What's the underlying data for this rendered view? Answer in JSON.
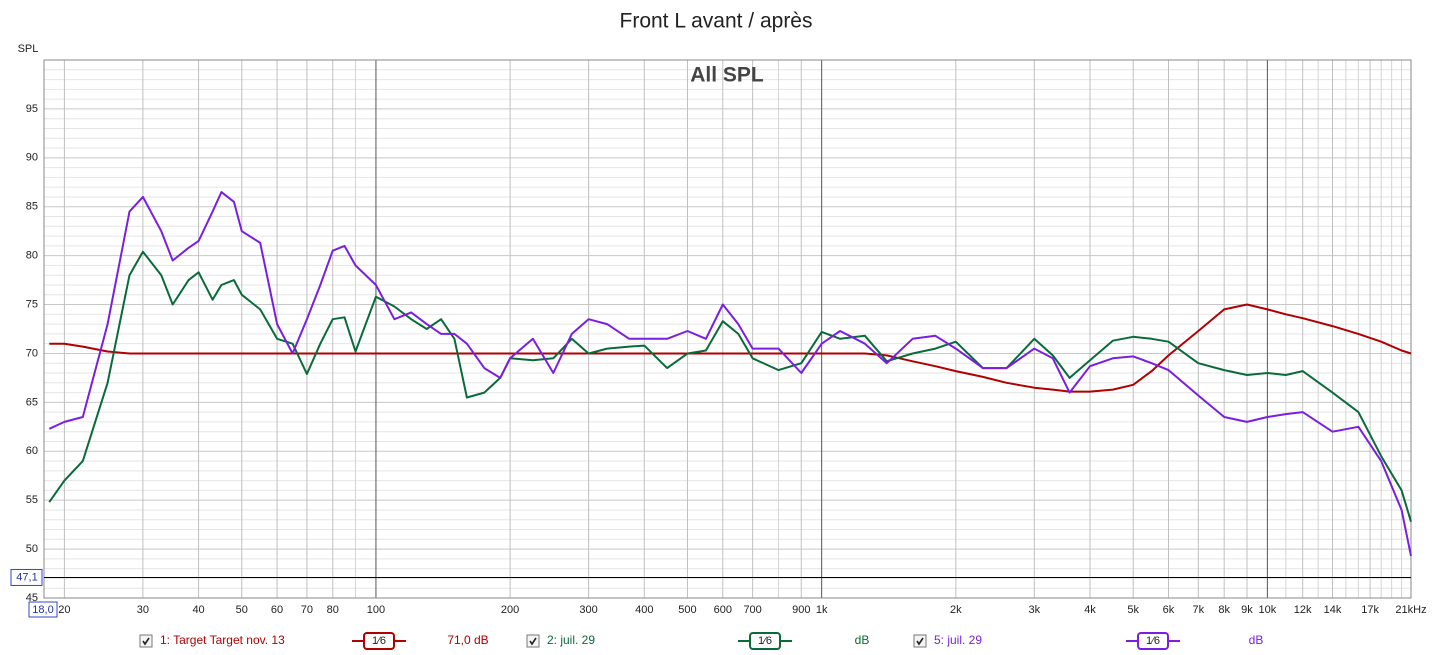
{
  "chart_data": {
    "type": "line",
    "title": "Front L avant / après",
    "subtitle": "All SPL",
    "y_label": "SPL",
    "log_x": true,
    "grid": true,
    "xlim": [
      18,
      21000
    ],
    "ylim": [
      45,
      100
    ],
    "yticks": [
      45,
      50,
      55,
      60,
      65,
      70,
      75,
      80,
      85,
      90,
      95
    ],
    "ygrid_minor": [
      46,
      47,
      48,
      49,
      51,
      52,
      53,
      54,
      56,
      57,
      58,
      59,
      61,
      62,
      63,
      64,
      66,
      67,
      68,
      69,
      71,
      72,
      73,
      74,
      76,
      77,
      78,
      79,
      81,
      82,
      83,
      84,
      86,
      87,
      88,
      89,
      91,
      92,
      93,
      94,
      96,
      97,
      98,
      99
    ],
    "xticks": [
      20,
      30,
      40,
      50,
      60,
      70,
      80,
      100,
      200,
      300,
      400,
      500,
      600,
      700,
      900,
      {
        "value": 1000,
        "label": "1k"
      },
      {
        "value": 2000,
        "label": "2k"
      },
      {
        "value": 3000,
        "label": "3k"
      },
      {
        "value": 4000,
        "label": "4k"
      },
      {
        "value": 5000,
        "label": "5k"
      },
      {
        "value": 6000,
        "label": "6k"
      },
      {
        "value": 7000,
        "label": "7k"
      },
      {
        "value": 8000,
        "label": "8k"
      },
      {
        "value": 9000,
        "label": "9k"
      },
      {
        "value": 10000,
        "label": "10k"
      },
      {
        "value": 12000,
        "label": "12k"
      },
      {
        "value": 14000,
        "label": "14k"
      },
      {
        "value": 17000,
        "label": "17k"
      },
      {
        "value": 21000,
        "label": "21kHz"
      }
    ],
    "xgrid_minor": [
      90,
      800,
      11000,
      13000,
      15000,
      16000,
      18000,
      19000,
      20000
    ],
    "cursor": {
      "x": {
        "value": 18,
        "label": "18,0"
      },
      "y": {
        "value": 47.1,
        "label": "47,1"
      }
    },
    "x": [
      18.5,
      20,
      22,
      25,
      28,
      30,
      33,
      35,
      38,
      40,
      43,
      45,
      48,
      50,
      55,
      60,
      65,
      70,
      75,
      80,
      85,
      90,
      100,
      110,
      120,
      130,
      140,
      150,
      160,
      175,
      190,
      200,
      225,
      250,
      275,
      300,
      330,
      370,
      400,
      450,
      500,
      550,
      600,
      650,
      700,
      800,
      900,
      1000,
      1100,
      1250,
      1400,
      1600,
      1800,
      2000,
      2300,
      2600,
      3000,
      3300,
      3600,
      4000,
      4500,
      5000,
      5500,
      6000,
      7000,
      8000,
      9000,
      10000,
      11000,
      12000,
      14000,
      16000,
      18000,
      20000,
      21000
    ],
    "series": [
      {
        "name": "1: Target Target nov. 13",
        "color": "#b00000",
        "smoothing": "1⁄6",
        "level": "71,0 dB",
        "values": [
          71,
          71,
          70.7,
          70.2,
          70,
          70,
          70,
          70,
          70,
          70,
          70,
          70,
          70,
          70,
          70,
          70,
          70,
          70,
          70,
          70,
          70,
          70,
          70,
          70,
          70,
          70,
          70,
          70,
          70,
          70,
          70,
          70,
          70,
          70,
          70,
          70,
          70,
          70,
          70,
          70,
          70,
          70,
          70,
          70,
          70,
          70,
          70,
          70,
          70,
          70,
          69.8,
          69.2,
          68.7,
          68.2,
          67.6,
          67,
          66.5,
          66.3,
          66.1,
          66.1,
          66.3,
          66.8,
          68.2,
          69.8,
          72.3,
          74.5,
          75,
          74.5,
          74,
          73.6,
          72.8,
          72,
          71.2,
          70.3,
          70
        ]
      },
      {
        "name": "2: juil. 29",
        "color": "#0a6b3a",
        "smoothing": "1⁄6",
        "level": "dB",
        "values": [
          54.8,
          57,
          59,
          67,
          78,
          80.4,
          78,
          75,
          77.5,
          78.3,
          75.5,
          77,
          77.5,
          76,
          74.5,
          71.5,
          71,
          67.9,
          71,
          73.5,
          73.7,
          70.2,
          75.8,
          74.8,
          73.5,
          72.5,
          73.5,
          71.5,
          65.5,
          66,
          67.5,
          69.5,
          69.3,
          69.5,
          71.5,
          70,
          70.5,
          70.7,
          70.8,
          68.5,
          70,
          70.3,
          73.3,
          72,
          69.5,
          68.3,
          69,
          72.2,
          71.5,
          71.8,
          69.2,
          70,
          70.5,
          71.2,
          68.5,
          68.5,
          71.5,
          69.8,
          67.5,
          69.3,
          71.3,
          71.7,
          71.5,
          71.2,
          69,
          68.3,
          67.8,
          68,
          67.8,
          68.2,
          66,
          64,
          59.5,
          56,
          52.8
        ]
      },
      {
        "name": "5: juil. 29",
        "color": "#7a1fe0",
        "smoothing": "1⁄6",
        "level": "dB",
        "values": [
          62.3,
          63,
          63.5,
          73,
          84.5,
          86,
          82.5,
          79.5,
          80.8,
          81.5,
          84.5,
          86.5,
          85.5,
          82.5,
          81.3,
          73,
          70,
          73.5,
          77,
          80.5,
          81,
          79,
          77,
          73.5,
          74.2,
          73,
          72,
          72,
          71,
          68.5,
          67.5,
          69.5,
          71.5,
          68,
          72,
          73.5,
          73,
          71.5,
          71.5,
          71.5,
          72.3,
          71.5,
          75,
          73,
          70.5,
          70.5,
          68,
          71,
          72.3,
          71,
          69,
          71.5,
          71.8,
          70.5,
          68.5,
          68.5,
          70.5,
          69.5,
          66,
          68.7,
          69.5,
          69.7,
          69,
          68.3,
          65.7,
          63.5,
          63,
          63.5,
          63.8,
          64,
          62,
          62.5,
          59,
          54,
          49.3
        ]
      }
    ]
  }
}
